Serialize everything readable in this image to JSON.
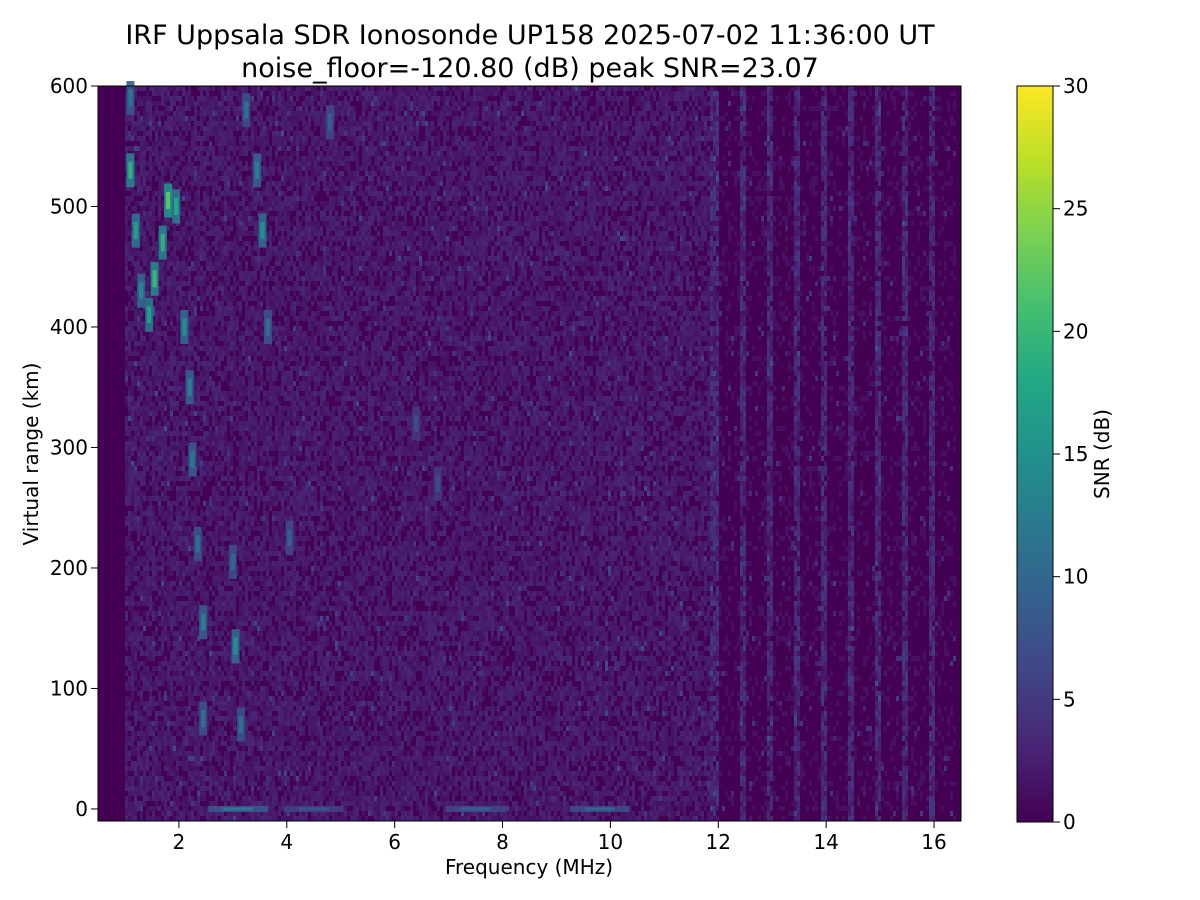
{
  "chart_data": {
    "type": "heatmap",
    "title": "IRF Uppsala SDR Ionosonde UP158 2025-07-02 11:36:00  UT",
    "subtitle": "noise_floor=-120.80 (dB) peak SNR=23.07",
    "xlabel": "Frequency (MHz)",
    "ylabel": "Virtual range (km)",
    "xlim": [
      0.5,
      16.5
    ],
    "ylim": [
      -10,
      600
    ],
    "xticks": [
      2,
      4,
      6,
      8,
      10,
      12,
      14,
      16
    ],
    "yticks": [
      0,
      100,
      200,
      300,
      400,
      500,
      600
    ],
    "colorbar": {
      "label": "SNR (dB)",
      "colormap": "viridis",
      "range": [
        0,
        30
      ],
      "ticks": [
        0,
        5,
        10,
        15,
        20,
        25,
        30
      ]
    },
    "background_snr_db": 2,
    "echoes": [
      {
        "freq_mhz": 1.1,
        "range_km": 530,
        "snr_db": 19
      },
      {
        "freq_mhz": 1.1,
        "range_km": 590,
        "snr_db": 12
      },
      {
        "freq_mhz": 1.2,
        "range_km": 480,
        "snr_db": 17
      },
      {
        "freq_mhz": 1.3,
        "range_km": 430,
        "snr_db": 14
      },
      {
        "freq_mhz": 1.45,
        "range_km": 410,
        "snr_db": 17
      },
      {
        "freq_mhz": 1.55,
        "range_km": 440,
        "snr_db": 20
      },
      {
        "freq_mhz": 1.7,
        "range_km": 470,
        "snr_db": 19
      },
      {
        "freq_mhz": 1.8,
        "range_km": 505,
        "snr_db": 22
      },
      {
        "freq_mhz": 1.95,
        "range_km": 500,
        "snr_db": 18
      },
      {
        "freq_mhz": 2.1,
        "range_km": 400,
        "snr_db": 15
      },
      {
        "freq_mhz": 2.2,
        "range_km": 350,
        "snr_db": 13
      },
      {
        "freq_mhz": 2.25,
        "range_km": 290,
        "snr_db": 12
      },
      {
        "freq_mhz": 2.35,
        "range_km": 220,
        "snr_db": 11
      },
      {
        "freq_mhz": 2.45,
        "range_km": 155,
        "snr_db": 13
      },
      {
        "freq_mhz": 2.45,
        "range_km": 75,
        "snr_db": 11
      },
      {
        "freq_mhz": 3.0,
        "range_km": 205,
        "snr_db": 10
      },
      {
        "freq_mhz": 3.05,
        "range_km": 135,
        "snr_db": 15
      },
      {
        "freq_mhz": 3.15,
        "range_km": 70,
        "snr_db": 11
      },
      {
        "freq_mhz": 3.25,
        "range_km": 580,
        "snr_db": 11
      },
      {
        "freq_mhz": 3.45,
        "range_km": 530,
        "snr_db": 13
      },
      {
        "freq_mhz": 3.55,
        "range_km": 480,
        "snr_db": 15
      },
      {
        "freq_mhz": 3.65,
        "range_km": 400,
        "snr_db": 11
      },
      {
        "freq_mhz": 4.05,
        "range_km": 225,
        "snr_db": 9
      },
      {
        "freq_mhz": 4.8,
        "range_km": 570,
        "snr_db": 9
      },
      {
        "freq_mhz": 6.4,
        "range_km": 320,
        "snr_db": 7
      },
      {
        "freq_mhz": 6.8,
        "range_km": 270,
        "snr_db": 7
      },
      {
        "freq_mhz": 3.1,
        "range_km": 0,
        "snr_db": 12
      },
      {
        "freq_mhz": 4.5,
        "range_km": 0,
        "snr_db": 8
      },
      {
        "freq_mhz": 7.5,
        "range_km": 0,
        "snr_db": 9
      },
      {
        "freq_mhz": 9.8,
        "range_km": 0,
        "snr_db": 10
      }
    ]
  }
}
